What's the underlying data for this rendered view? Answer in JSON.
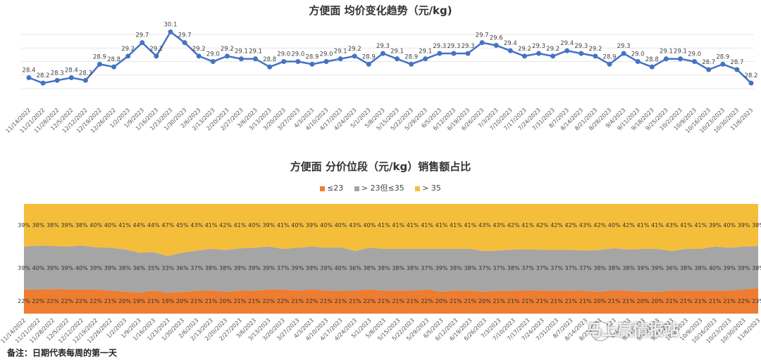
{
  "chart_data": [
    {
      "type": "line",
      "title": "方便面 均价变化趋势（元/kg)",
      "color": "#4472C4",
      "x": [
        "11/14/2022",
        "11/21/2022",
        "11/28/2022",
        "12/5/2022",
        "12/12/2022",
        "12/19/2022",
        "12/26/2022",
        "1/2/2023",
        "1/9/2023",
        "1/16/2023",
        "1/23/2023",
        "1/30/2023",
        "2/6/2023",
        "2/13/2023",
        "2/20/2023",
        "2/27/2023",
        "3/6/2023",
        "3/13/2023",
        "3/20/2023",
        "3/27/2023",
        "4/3/2023",
        "4/10/2023",
        "4/17/2023",
        "4/24/2023",
        "5/1/2023",
        "5/8/2023",
        "5/15/2023",
        "5/22/2023",
        "5/29/2023",
        "6/5/2023",
        "6/12/2023",
        "6/19/2023",
        "6/26/2023",
        "7/3/2023",
        "7/10/2023",
        "7/17/2023",
        "7/24/2023",
        "7/31/2023",
        "8/7/2023",
        "8/14/2023",
        "8/21/2023",
        "8/28/2023",
        "9/4/2023",
        "9/11/2023",
        "9/18/2023",
        "9/25/2023",
        "10/2/2023",
        "10/9/2023",
        "10/16/2023",
        "10/23/2023",
        "10/30/2023",
        "11/6/2023"
      ],
      "values": [
        28.4,
        28.2,
        28.3,
        28.4,
        28.3,
        28.9,
        28.8,
        29.2,
        29.7,
        29.2,
        30.1,
        29.7,
        29.2,
        29.0,
        29.2,
        29.1,
        29.1,
        28.8,
        29.0,
        29.0,
        28.9,
        29.0,
        29.1,
        29.2,
        28.9,
        29.3,
        29.1,
        28.9,
        29.1,
        29.3,
        29.3,
        29.3,
        29.7,
        29.6,
        29.4,
        29.2,
        29.3,
        29.2,
        29.4,
        29.3,
        29.2,
        28.9,
        29.3,
        29.0,
        28.8,
        29.1,
        29.1,
        29.0,
        28.7,
        28.9,
        28.7,
        28.2
      ],
      "ylim": [
        27.5,
        30.5
      ],
      "labels": [
        "28.4",
        "28.2",
        "28.3",
        "28.4",
        "28.3",
        "28.9",
        "28.8",
        "29.2",
        "29.7",
        "29.2",
        "30.1",
        "29.7",
        "29.2",
        "29.0",
        "29.2",
        "29.1",
        "29.1",
        "28.8",
        "29.0",
        "29.0",
        "28.9",
        "29.0",
        "29.1",
        "29.2",
        "28.9",
        "29.3",
        "29.1",
        "28.9",
        "29.1",
        "29.3",
        "29.3",
        "29.3",
        "29.7",
        "29.6",
        "29.4",
        "29.2",
        "29.3",
        "29.2",
        "29.4",
        "29.3",
        "29.2",
        "28.9",
        "29.3",
        "29.0",
        "28.8",
        "29.1",
        "29.1",
        "29.0",
        "28.7",
        "28.9",
        "28.7",
        "28.2"
      ],
      "grid": true
    },
    {
      "type": "area",
      "stacked": "percent",
      "title": "方便面 分价位段（元/kg）销售额占比",
      "legend_position": "top",
      "series": [
        {
          "name": "≤23",
          "color": "#ED7D31",
          "values": [
            22,
            22,
            22,
            22,
            22,
            22,
            21,
            20,
            19,
            21,
            19,
            20,
            21,
            21,
            20,
            21,
            21,
            22,
            22,
            21,
            22,
            21,
            21,
            21,
            22,
            21,
            21,
            21,
            22,
            20,
            21,
            21,
            20,
            21,
            21,
            21,
            21,
            21,
            21,
            21,
            20,
            21,
            21,
            20,
            20,
            21,
            21,
            21,
            21,
            21,
            22,
            23
          ]
        },
        {
          "name": "> 23但≤35",
          "color": "#A5A5A5",
          "values": [
            39,
            40,
            39,
            39,
            40,
            39,
            39,
            38,
            36,
            35,
            33,
            36,
            37,
            38,
            38,
            39,
            39,
            39,
            37,
            39,
            39,
            39,
            40,
            36,
            38,
            38,
            38,
            38,
            37,
            39,
            38,
            38,
            37,
            37,
            38,
            37,
            37,
            37,
            37,
            37,
            38,
            38,
            38,
            39,
            39,
            36,
            38,
            38,
            40,
            39,
            39,
            38
          ]
        },
        {
          "name": "> 35",
          "color": "#F5BE3A",
          "values": [
            39,
            38,
            38,
            39,
            38,
            40,
            40,
            41,
            44,
            44,
            47,
            45,
            43,
            41,
            42,
            41,
            40,
            39,
            41,
            40,
            39,
            40,
            40,
            43,
            40,
            41,
            41,
            41,
            41,
            41,
            41,
            41,
            43,
            43,
            42,
            41,
            42,
            42,
            42,
            43,
            42,
            40,
            42,
            41,
            41,
            43,
            41,
            41,
            39,
            40,
            39,
            38
          ]
        }
      ],
      "x": [
        "11/14/2022",
        "11/21/2022",
        "11/28/2022",
        "12/5/2022",
        "12/12/2022",
        "12/19/2022",
        "12/26/2022",
        "1/2/2023",
        "1/9/2023",
        "1/16/2023",
        "1/23/2023",
        "1/30/2023",
        "2/6/2023",
        "2/13/2023",
        "2/20/2023",
        "2/27/2023",
        "3/6/2023",
        "3/13/2023",
        "3/20/2023",
        "3/27/2023",
        "4/3/2023",
        "4/10/2023",
        "4/17/2023",
        "4/24/2023",
        "5/1/2023",
        "5/8/2023",
        "5/15/2023",
        "5/22/2023",
        "5/29/2023",
        "6/5/2023",
        "6/12/2023",
        "6/19/2023",
        "6/26/2023",
        "7/3/2023",
        "7/10/2023",
        "7/17/2023",
        "7/24/2023",
        "7/31/2023",
        "8/7/2023",
        "8/14/2023",
        "8/21/2023",
        "8/28/2023",
        "9/4/2023",
        "9/11/2023",
        "9/18/2023",
        "9/25/2023",
        "10/2/2023",
        "10/9/2023",
        "10/16/2023",
        "10/23/2023",
        "10/30/2023",
        "11/6/2023"
      ]
    }
  ],
  "footnote": "备注：日期代表每周的第一天",
  "watermark": "马上赢情报站"
}
